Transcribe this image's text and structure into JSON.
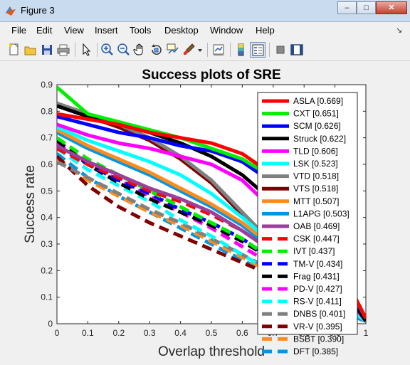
{
  "window": {
    "title": "Figure 3",
    "minimize": "–",
    "maximize": "□",
    "close": "✕"
  },
  "menu": [
    "File",
    "Edit",
    "View",
    "Insert",
    "Tools",
    "Desktop",
    "Window",
    "Help"
  ],
  "toolbar": [
    "new-figure",
    "open-file",
    "save-figure",
    "print-figure",
    "edit-plot-arrow",
    "zoom-in",
    "zoom-out",
    "pan-hand",
    "rotate-3d",
    "data-cursor",
    "brush",
    "brush-dropdown",
    "link-plot",
    "colorbar",
    "legend",
    "hide-plot-tools",
    "show-plot-tools"
  ],
  "colors": {
    "titlebar": "#c9dcef",
    "figure_bg": "#f0f0f0",
    "axes_bg": "#ffffff"
  },
  "chart_data": {
    "type": "line",
    "title": "Success plots of SRE",
    "xlabel": "Overlap threshold",
    "ylabel": "Success rate",
    "xlim": [
      0,
      1
    ],
    "ylim": [
      0,
      0.9
    ],
    "xticks": [
      "0",
      "0.1",
      "0.2",
      "0.3",
      "0.4",
      "0.5",
      "0.6",
      "0.7",
      "0.8",
      "0.9",
      "1"
    ],
    "yticks": [
      "0",
      "0.1",
      "0.2",
      "0.3",
      "0.4",
      "0.5",
      "0.6",
      "0.7",
      "0.8",
      "0.9"
    ],
    "x": [
      0,
      0.1,
      0.2,
      0.3,
      0.4,
      0.5,
      0.6,
      0.7,
      0.8,
      0.9,
      1.0
    ],
    "grid": false,
    "legend_position": "top-right",
    "series": [
      {
        "name": "ASLA [0.669]",
        "color": "#ff0000",
        "style": "solid",
        "values": [
          0.79,
          0.77,
          0.75,
          0.72,
          0.7,
          0.68,
          0.64,
          0.56,
          0.43,
          0.25,
          0.02
        ]
      },
      {
        "name": "CXT [0.651]",
        "color": "#00ee00",
        "style": "solid",
        "values": [
          0.89,
          0.79,
          0.76,
          0.73,
          0.7,
          0.66,
          0.62,
          0.55,
          0.42,
          0.24,
          0.02
        ]
      },
      {
        "name": "SCM [0.626]",
        "color": "#0000ff",
        "style": "solid",
        "values": [
          0.78,
          0.75,
          0.72,
          0.7,
          0.67,
          0.65,
          0.61,
          0.53,
          0.4,
          0.22,
          0.02
        ]
      },
      {
        "name": "Struck [0.622]",
        "color": "#000000",
        "style": "solid",
        "values": [
          0.82,
          0.78,
          0.75,
          0.72,
          0.68,
          0.63,
          0.56,
          0.46,
          0.34,
          0.18,
          0.01
        ]
      },
      {
        "name": "TLD [0.606]",
        "color": "#ff00ff",
        "style": "solid",
        "values": [
          0.75,
          0.71,
          0.68,
          0.66,
          0.63,
          0.6,
          0.54,
          0.43,
          0.3,
          0.16,
          0.01
        ]
      },
      {
        "name": "LSK [0.523]",
        "color": "#00ffff",
        "style": "solid",
        "values": [
          0.74,
          0.69,
          0.65,
          0.61,
          0.56,
          0.49,
          0.4,
          0.3,
          0.19,
          0.09,
          0.01
        ]
      },
      {
        "name": "VTD [0.518]",
        "color": "#808080",
        "style": "solid",
        "values": [
          0.83,
          0.79,
          0.75,
          0.7,
          0.63,
          0.54,
          0.42,
          0.3,
          0.18,
          0.08,
          0.01
        ]
      },
      {
        "name": "VTS [0.518]",
        "color": "#800000",
        "style": "solid",
        "values": [
          0.82,
          0.78,
          0.74,
          0.69,
          0.62,
          0.53,
          0.41,
          0.29,
          0.17,
          0.08,
          0.01
        ]
      },
      {
        "name": "MTT [0.507]",
        "color": "#ff8c1a",
        "style": "solid",
        "values": [
          0.73,
          0.67,
          0.62,
          0.57,
          0.51,
          0.45,
          0.38,
          0.29,
          0.19,
          0.09,
          0.01
        ]
      },
      {
        "name": "L1APG [0.503]",
        "color": "#0096e6",
        "style": "solid",
        "values": [
          0.72,
          0.66,
          0.61,
          0.56,
          0.5,
          0.44,
          0.37,
          0.28,
          0.18,
          0.09,
          0.01
        ]
      },
      {
        "name": "OAB [0.469]",
        "color": "#9b3f9b",
        "style": "solid",
        "values": [
          0.67,
          0.61,
          0.56,
          0.51,
          0.47,
          0.42,
          0.35,
          0.27,
          0.17,
          0.08,
          0.01
        ]
      },
      {
        "name": "CSK [0.447]",
        "color": "#ff0000",
        "style": "dashed",
        "values": [
          0.66,
          0.6,
          0.55,
          0.5,
          0.46,
          0.41,
          0.35,
          0.27,
          0.17,
          0.08,
          0.01
        ]
      },
      {
        "name": "IVT [0.437]",
        "color": "#00ee00",
        "style": "dashed",
        "values": [
          0.7,
          0.62,
          0.56,
          0.5,
          0.44,
          0.38,
          0.32,
          0.24,
          0.16,
          0.08,
          0.01
        ]
      },
      {
        "name": "TM-V [0.434]",
        "color": "#0000ff",
        "style": "dashed",
        "values": [
          0.67,
          0.6,
          0.54,
          0.49,
          0.43,
          0.38,
          0.32,
          0.24,
          0.15,
          0.07,
          0.01
        ]
      },
      {
        "name": "Frag [0.431]",
        "color": "#000000",
        "style": "dashed",
        "values": [
          0.69,
          0.6,
          0.53,
          0.47,
          0.42,
          0.37,
          0.31,
          0.24,
          0.16,
          0.08,
          0.01
        ]
      },
      {
        "name": "PD-V [0.427]",
        "color": "#ff00ff",
        "style": "dashed",
        "values": [
          0.68,
          0.6,
          0.54,
          0.48,
          0.42,
          0.36,
          0.29,
          0.22,
          0.14,
          0.07,
          0.01
        ]
      },
      {
        "name": "RS-V [0.411]",
        "color": "#00ffff",
        "style": "dashed",
        "values": [
          0.66,
          0.58,
          0.52,
          0.46,
          0.39,
          0.33,
          0.26,
          0.19,
          0.12,
          0.06,
          0.01
        ]
      },
      {
        "name": "DNBS [0.401]",
        "color": "#808080",
        "style": "dashed",
        "values": [
          0.61,
          0.55,
          0.49,
          0.43,
          0.38,
          0.32,
          0.26,
          0.2,
          0.13,
          0.06,
          0.01
        ]
      },
      {
        "name": "VR-V [0.395]",
        "color": "#800000",
        "style": "dashed",
        "values": [
          0.63,
          0.52,
          0.44,
          0.38,
          0.33,
          0.28,
          0.23,
          0.18,
          0.12,
          0.07,
          0.01
        ]
      },
      {
        "name": "BSBT [0.390]",
        "color": "#ff8c1a",
        "style": "dashed",
        "values": [
          0.62,
          0.54,
          0.48,
          0.42,
          0.37,
          0.31,
          0.25,
          0.19,
          0.12,
          0.06,
          0.01
        ]
      },
      {
        "name": "DFT [0.385]",
        "color": "#0096e6",
        "style": "dashed",
        "values": [
          0.64,
          0.55,
          0.48,
          0.42,
          0.36,
          0.3,
          0.24,
          0.18,
          0.11,
          0.05,
          0.01
        ]
      }
    ]
  }
}
